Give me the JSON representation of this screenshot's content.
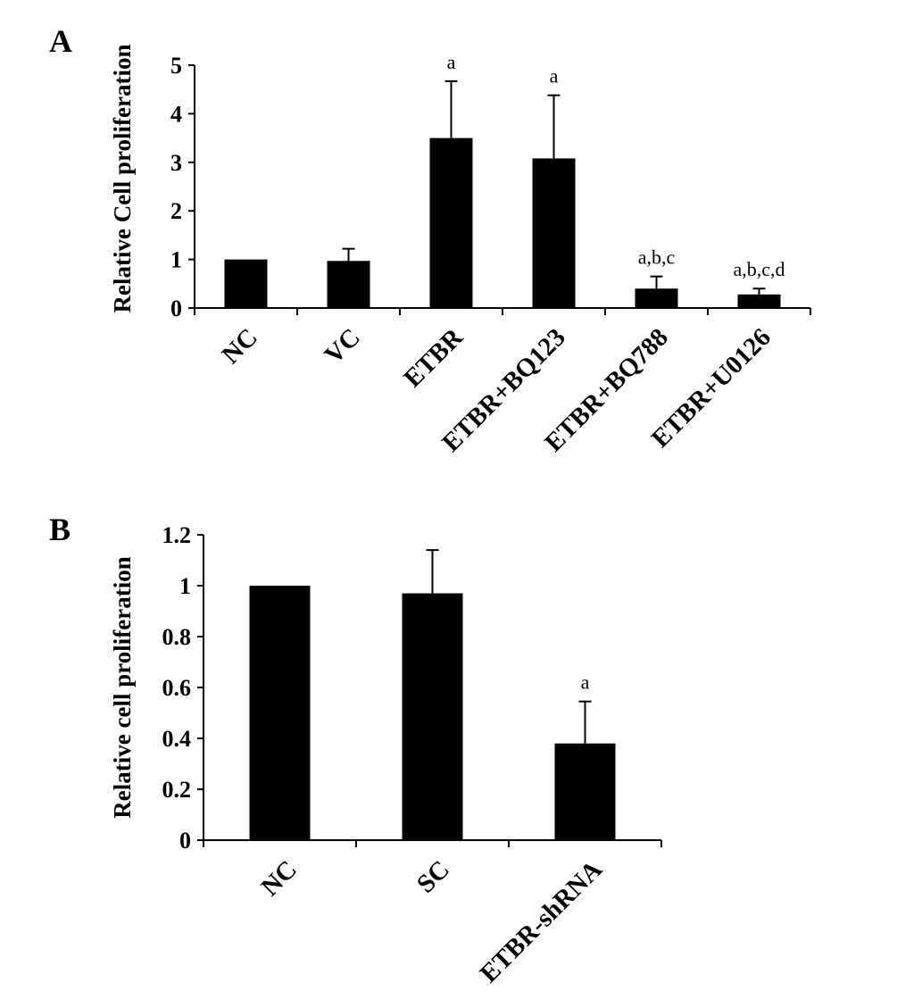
{
  "chart_data": [
    {
      "type": "bar",
      "panel_label": "A",
      "ylabel": "Relative Cell proliferation",
      "xlabel": "",
      "categories": [
        "NC",
        "VC",
        "ETBR",
        "ETBR+BQ123",
        "ETBR+BQ788",
        "ETBR+U0126"
      ],
      "values": [
        1.0,
        0.97,
        3.5,
        3.08,
        0.4,
        0.28
      ],
      "errors": [
        0,
        0.25,
        1.17,
        1.3,
        0.25,
        0.12
      ],
      "annotations": [
        "",
        "",
        "a",
        "a",
        "a,b,c",
        "a,b,c,d"
      ],
      "ylim": [
        0,
        5
      ],
      "yticks": [
        "0",
        "1",
        "2",
        "3",
        "4",
        "5"
      ],
      "grid": false,
      "bar_color": "#000000"
    },
    {
      "type": "bar",
      "panel_label": "B",
      "ylabel": "Relative cell proliferation",
      "xlabel": "",
      "categories": [
        "NC",
        "SC",
        "ETBR-shRNA"
      ],
      "values": [
        1.0,
        0.97,
        0.38
      ],
      "errors": [
        0,
        0.17,
        0.165
      ],
      "annotations": [
        "",
        "",
        "a"
      ],
      "ylim": [
        0,
        1.2
      ],
      "yticks": [
        "0",
        "0.2",
        "0.4",
        "0.6",
        "0.8",
        "1",
        "1.2"
      ],
      "grid": false,
      "bar_color": "#000000"
    }
  ]
}
